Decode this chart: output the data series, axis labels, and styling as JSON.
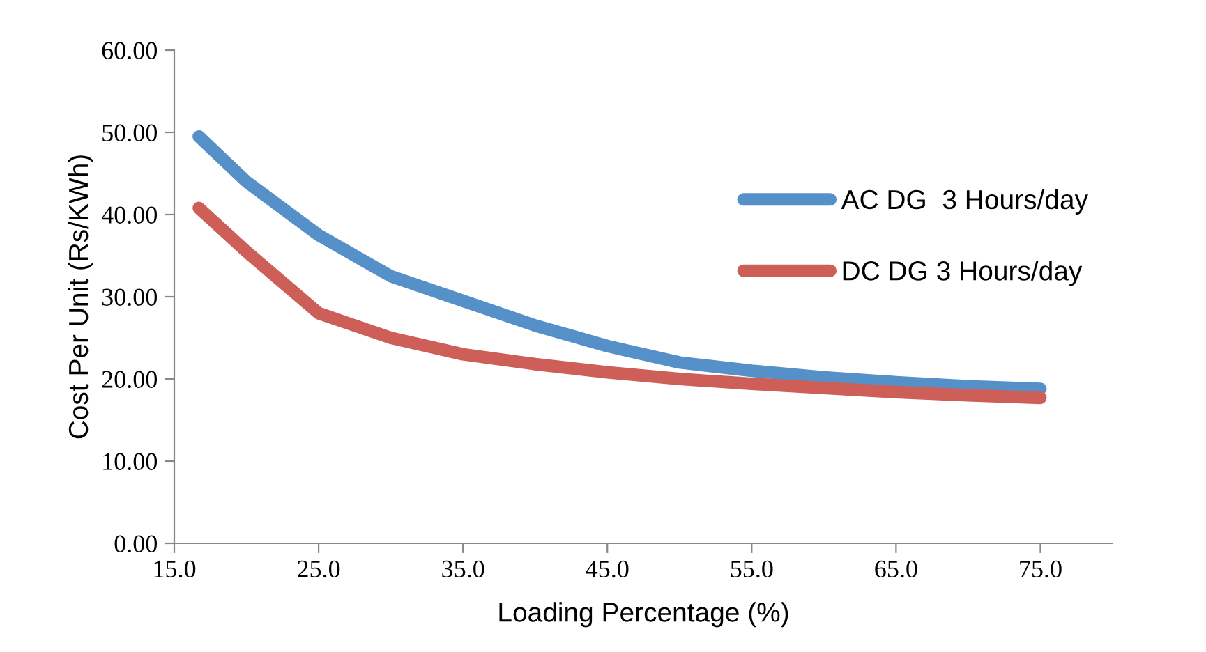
{
  "chart_data": {
    "type": "line",
    "xlabel": "Loading Percentage (%)",
    "ylabel": "Cost Per Unit (Rs/KWh)",
    "xlim": [
      15,
      80
    ],
    "xticks": [
      {
        "value": 15,
        "label": "15.0"
      },
      {
        "value": 25,
        "label": "25.0"
      },
      {
        "value": 35,
        "label": "35.0"
      },
      {
        "value": 45,
        "label": "45.0"
      },
      {
        "value": 55,
        "label": "55.0"
      },
      {
        "value": 65,
        "label": "65.0"
      },
      {
        "value": 75,
        "label": "75.0"
      }
    ],
    "ylim": [
      0,
      60
    ],
    "yticks": [
      {
        "value": 0,
        "label": "0.00"
      },
      {
        "value": 10,
        "label": "10.00"
      },
      {
        "value": 20,
        "label": "20.00"
      },
      {
        "value": 30,
        "label": "30.00"
      },
      {
        "value": 40,
        "label": "40.00"
      },
      {
        "value": 50,
        "label": "50.00"
      },
      {
        "value": 60,
        "label": "60.00"
      }
    ],
    "x": [
      16.7,
      20,
      25,
      30,
      35,
      40,
      45,
      50,
      55,
      60,
      65,
      70,
      75
    ],
    "series": [
      {
        "name": "AC DG  3 Hours/day",
        "color": "#5591c8",
        "values": [
          49.5,
          44,
          37.5,
          32.5,
          29.5,
          26.5,
          24,
          22,
          21,
          20.2,
          19.6,
          19.1,
          18.8
        ]
      },
      {
        "name": "DC DG 3 Hours/day",
        "color": "#cd5f58",
        "values": [
          40.8,
          35.5,
          28,
          25,
          23,
          21.8,
          20.8,
          20,
          19.4,
          18.9,
          18.4,
          18,
          17.7
        ]
      }
    ],
    "grid": false,
    "legend": "right",
    "marker": "none",
    "line_style": "solid"
  }
}
